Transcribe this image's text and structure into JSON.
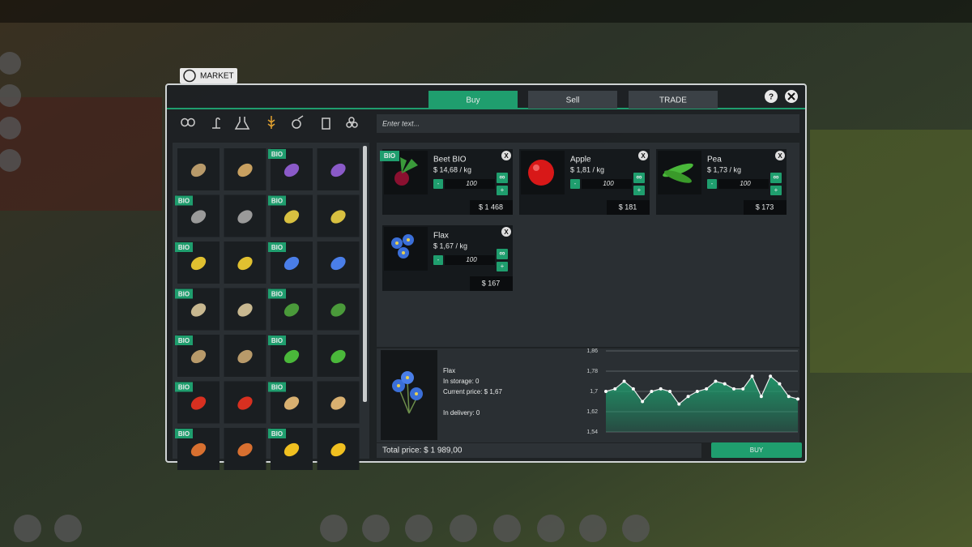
{
  "window": {
    "title": "MARKET",
    "tabs": [
      "Buy",
      "Sell",
      "TRADE"
    ],
    "help": "?",
    "search_placeholder": "Enter text..."
  },
  "items": [
    null,
    null,
    "BIO",
    null,
    "BIO",
    null,
    "BIO",
    null,
    "BIO",
    null,
    "BIO",
    null,
    "BIO",
    null,
    "BIO",
    null,
    "BIO",
    null,
    "BIO",
    null,
    "BIO",
    null,
    "BIO",
    null,
    "BIO",
    null,
    "BIO",
    null
  ],
  "cart": [
    {
      "name": "Beet BIO",
      "badge": "BIO",
      "price": "$ 14,68 / kg",
      "quantity": 100,
      "total": "$ 1 468"
    },
    {
      "name": "Apple",
      "badge": null,
      "price": "$ 1,81 / kg",
      "quantity": 100,
      "total": "$ 181"
    },
    {
      "name": "Pea",
      "badge": null,
      "price": "$ 1,73 / kg",
      "quantity": 100,
      "total": "$ 173"
    },
    {
      "name": "Flax",
      "badge": null,
      "price": "$ 1,67 / kg",
      "quantity": 100,
      "total": "$ 167"
    }
  ],
  "buttons": {
    "minus": "-",
    "plus": "+",
    "infinite": "∞",
    "remove": "X"
  },
  "details": {
    "name": "Flax",
    "storage": "In storage: 0",
    "price": "Current price: $ 1,67",
    "delivery": "In delivery: 0"
  },
  "chart_data": {
    "type": "line",
    "color": "#1f9e6e",
    "grid": true,
    "values": [
      1.7,
      1.71,
      1.74,
      1.71,
      1.66,
      1.7,
      1.71,
      1.7,
      1.65,
      1.68,
      1.7,
      1.71,
      1.74,
      1.73,
      1.71,
      1.71,
      1.76,
      1.68,
      1.76,
      1.73,
      1.68,
      1.67
    ],
    "ylim": [
      1.54,
      1.86
    ],
    "yticks": [
      {
        "value": 1.86,
        "label": "1,86"
      },
      {
        "value": 1.78,
        "label": "1,78"
      },
      {
        "value": 1.7,
        "label": "1,7"
      },
      {
        "value": 1.62,
        "label": "1,62"
      },
      {
        "value": 1.54,
        "label": "1,54"
      }
    ]
  },
  "total_price": "Total price: $ 1 989,00",
  "buy_button": "BUY"
}
